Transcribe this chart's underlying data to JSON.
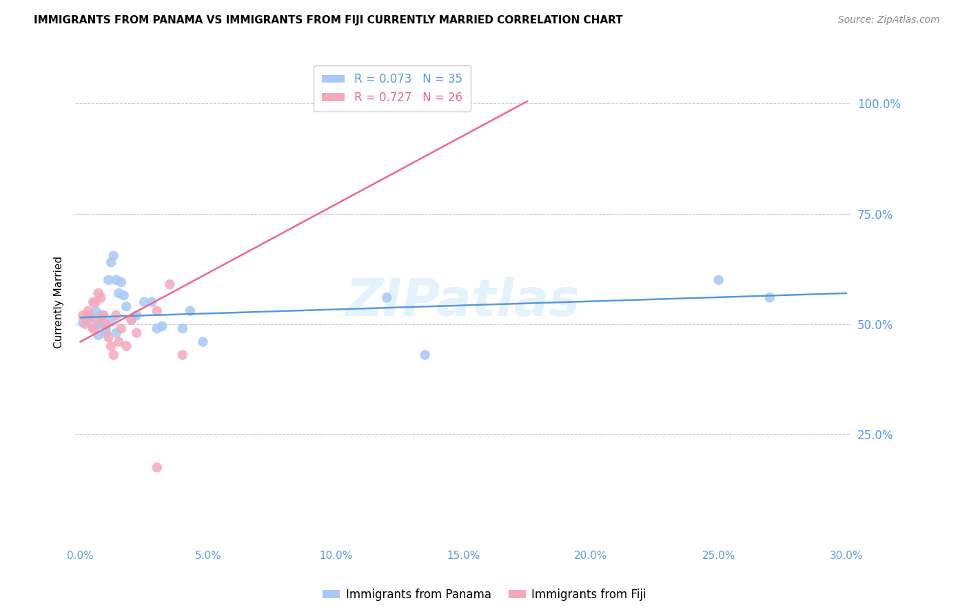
{
  "title": "IMMIGRANTS FROM PANAMA VS IMMIGRANTS FROM FIJI CURRENTLY MARRIED CORRELATION CHART",
  "source": "Source: ZipAtlas.com",
  "ylabel": "Currently Married",
  "xlim": [
    0.0,
    0.3
  ],
  "ylim": [
    0.0,
    1.1
  ],
  "xtick_vals": [
    0.0,
    0.05,
    0.1,
    0.15,
    0.2,
    0.25,
    0.3
  ],
  "ytick_vals": [
    0.25,
    0.5,
    0.75,
    1.0
  ],
  "ytick_labels": [
    "25.0%",
    "50.0%",
    "75.0%",
    "100.0%"
  ],
  "panama_color": "#a8c8f5",
  "fiji_color": "#f5a8bc",
  "panama_line_color": "#5599dd",
  "fiji_line_color": "#ee6688",
  "panama_R": 0.073,
  "panama_N": 35,
  "fiji_R": 0.727,
  "fiji_N": 26,
  "watermark": "ZIPatlas",
  "panama_x": [
    0.001,
    0.003,
    0.004,
    0.005,
    0.006,
    0.007,
    0.008,
    0.009,
    0.01,
    0.011,
    0.012,
    0.013,
    0.014,
    0.015,
    0.016,
    0.017,
    0.018,
    0.02,
    0.022,
    0.025,
    0.028,
    0.03,
    0.032,
    0.04,
    0.043,
    0.048,
    0.12,
    0.135,
    0.25,
    0.27,
    0.006,
    0.008,
    0.01,
    0.012,
    0.014
  ],
  "panama_y": [
    0.503,
    0.51,
    0.515,
    0.49,
    0.53,
    0.475,
    0.5,
    0.52,
    0.48,
    0.6,
    0.64,
    0.655,
    0.6,
    0.57,
    0.595,
    0.565,
    0.54,
    0.51,
    0.52,
    0.55,
    0.55,
    0.49,
    0.495,
    0.49,
    0.53,
    0.46,
    0.56,
    0.43,
    0.6,
    0.56,
    0.495,
    0.52,
    0.49,
    0.505,
    0.48
  ],
  "fiji_x": [
    0.001,
    0.002,
    0.003,
    0.004,
    0.005,
    0.006,
    0.007,
    0.008,
    0.009,
    0.01,
    0.011,
    0.012,
    0.013,
    0.014,
    0.015,
    0.016,
    0.018,
    0.02,
    0.022,
    0.03,
    0.035,
    0.003,
    0.005,
    0.007,
    0.04,
    0.03
  ],
  "fiji_y": [
    0.52,
    0.5,
    0.53,
    0.515,
    0.49,
    0.55,
    0.57,
    0.56,
    0.52,
    0.5,
    0.47,
    0.45,
    0.43,
    0.52,
    0.46,
    0.49,
    0.45,
    0.51,
    0.48,
    0.53,
    0.59,
    0.52,
    0.55,
    0.51,
    0.43,
    0.175
  ],
  "panama_line_x": [
    0.0,
    0.3
  ],
  "panama_line_y": [
    0.515,
    0.57
  ],
  "fiji_line_x": [
    0.0,
    0.175
  ],
  "fiji_line_y": [
    0.46,
    1.005
  ]
}
